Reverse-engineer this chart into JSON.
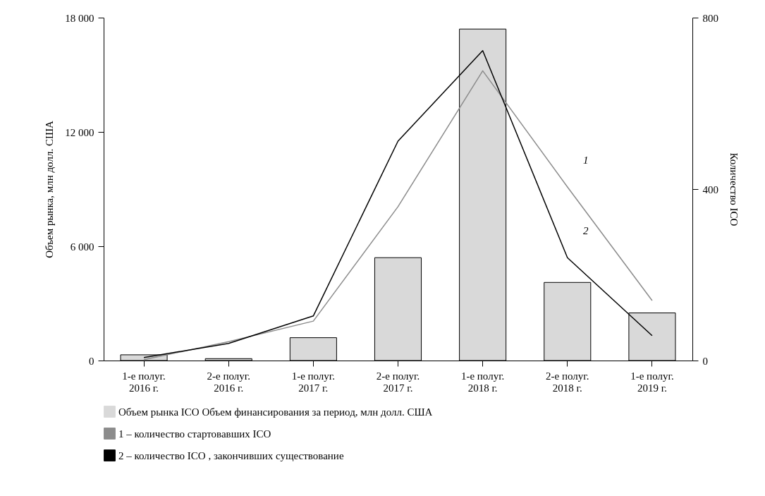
{
  "chart_data": {
    "type": "bar",
    "xlabel": null,
    "ylabel": "Объем рынка, млн долл. США",
    "y2label": "Количество ICO",
    "categories": [
      "1-е полуг. 2016 г.",
      "2-е полуг. 2016 г.",
      "1-е полуг. 2017 г.",
      "2-е полуг. 2017 г.",
      "1-е полуг. 2018 г.",
      "2-е полуг. 2018 г.",
      "1-е полуг. 2019 г."
    ],
    "ylim": [
      0,
      18000
    ],
    "yticks": [
      0,
      {
        "value": 6000,
        "label": "6 000"
      },
      {
        "value": 12000,
        "label": "12 000"
      },
      {
        "value": 18000,
        "label": "18 000"
      }
    ],
    "y2lim": [
      0,
      800
    ],
    "y2ticks": [
      0,
      400,
      800
    ],
    "series": [
      {
        "name": "Объем рынка ICO Объем финансирования за период, млн долл. США",
        "color": "#d9d9d9",
        "values": [
          300,
          100,
          1200,
          5400,
          17400,
          4100,
          2500
        ]
      },
      {
        "name": "1 – количество стартовавших ICO",
        "type": "line",
        "axis": "y2",
        "color": "#8c8c8c",
        "values": [
          2,
          44,
          92,
          359,
          676,
          405,
          140
        ]
      },
      {
        "name": "2 – количество ICO , закончивших существование",
        "type": "line",
        "axis": "y2",
        "color": "#000000",
        "values": [
          7,
          40,
          104,
          512,
          723,
          240,
          58
        ]
      }
    ],
    "annotations": [
      "1",
      "2"
    ],
    "legend": "bottom",
    "grid": false
  }
}
